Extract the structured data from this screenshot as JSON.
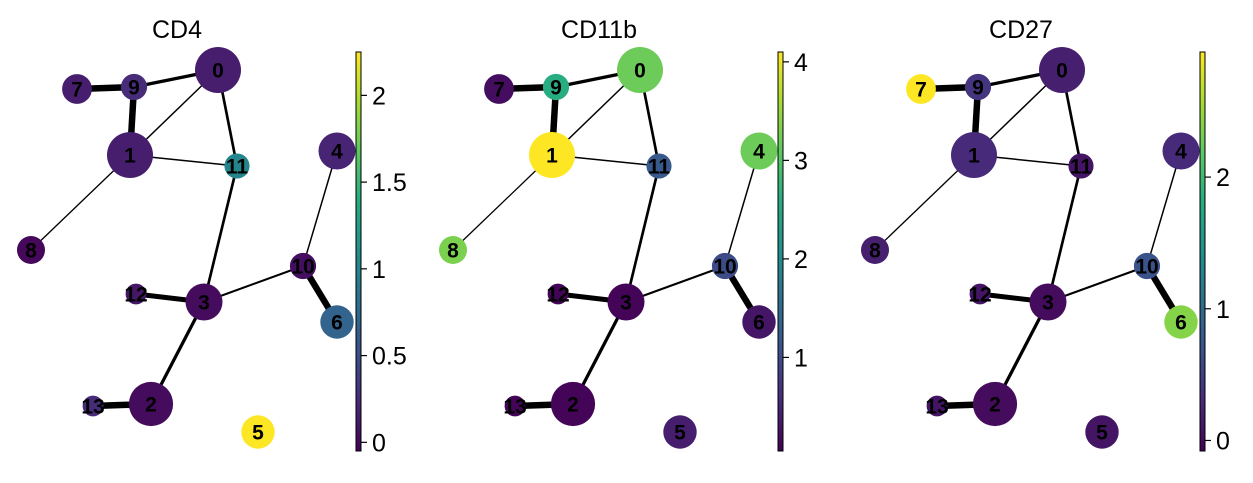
{
  "chart_data": [
    {
      "type": "graph",
      "title": "CD4",
      "colorbar": {
        "min": -0.05,
        "max": 2.25,
        "ticks": [
          0,
          0.5,
          1,
          1.5,
          2
        ],
        "tick_labels": [
          "0",
          "0.5",
          "1",
          "1.5",
          "2"
        ]
      },
      "node_values": {
        "0": 0.15,
        "1": 0.15,
        "2": 0.02,
        "3": 0.02,
        "4": 0.2,
        "5": 2.25,
        "6": 0.7,
        "7": 0.15,
        "8": 0.0,
        "9": 0.25,
        "10": 0.05,
        "11": 1.0,
        "12": 0.1,
        "13": 0.25
      }
    },
    {
      "type": "graph",
      "title": "CD11b",
      "colorbar": {
        "min": 0.05,
        "max": 4.1,
        "ticks": [
          1,
          2,
          3,
          4
        ],
        "tick_labels": [
          "1",
          "2",
          "3",
          "4"
        ]
      },
      "node_values": {
        "0": 3.2,
        "1": 4.1,
        "2": 0.1,
        "3": 0.1,
        "4": 3.2,
        "5": 0.4,
        "6": 0.3,
        "7": 0.2,
        "8": 3.3,
        "9": 2.6,
        "10": 1.0,
        "11": 1.2,
        "12": 0.1,
        "13": 0.1
      }
    },
    {
      "type": "graph",
      "title": "CD27",
      "colorbar": {
        "min": -0.08,
        "max": 2.95,
        "ticks": [
          0,
          1,
          2
        ],
        "tick_labels": [
          "0",
          "1",
          "2"
        ]
      },
      "node_values": {
        "0": 0.2,
        "1": 0.3,
        "2": 0.02,
        "3": 0.02,
        "4": 0.3,
        "5": 0.1,
        "6": 2.4,
        "7": 2.95,
        "8": 0.2,
        "9": 0.4,
        "10": 0.7,
        "11": 0.1,
        "12": 0.1,
        "13": 0.1
      }
    }
  ],
  "graph": {
    "node_labels": [
      "0",
      "1",
      "2",
      "3",
      "4",
      "5",
      "6",
      "7",
      "8",
      "9",
      "10",
      "11",
      "12",
      "13"
    ],
    "node_sizes": {
      "0": 1.0,
      "1": 1.0,
      "2": 0.95,
      "3": 0.75,
      "4": 0.75,
      "5": 0.65,
      "6": 0.65,
      "7": 0.55,
      "8": 0.5,
      "9": 0.45,
      "10": 0.45,
      "11": 0.42,
      "12": 0.3,
      "13": 0.3
    },
    "edges": [
      {
        "source": "7",
        "target": "9",
        "weight": 1.0
      },
      {
        "source": "9",
        "target": "1",
        "weight": 1.0
      },
      {
        "source": "9",
        "target": "0",
        "weight": 0.45
      },
      {
        "source": "0",
        "target": "1",
        "weight": 0.15
      },
      {
        "source": "0",
        "target": "11",
        "weight": 0.35
      },
      {
        "source": "1",
        "target": "11",
        "weight": 0.15
      },
      {
        "source": "1",
        "target": "8",
        "weight": 0.12
      },
      {
        "source": "11",
        "target": "3",
        "weight": 0.35
      },
      {
        "source": "3",
        "target": "12",
        "weight": 0.75
      },
      {
        "source": "3",
        "target": "10",
        "weight": 0.25
      },
      {
        "source": "3",
        "target": "2",
        "weight": 0.45
      },
      {
        "source": "2",
        "target": "13",
        "weight": 1.0
      },
      {
        "source": "10",
        "target": "6",
        "weight": 1.0
      },
      {
        "source": "10",
        "target": "4",
        "weight": 0.15
      }
    ]
  },
  "colormap": "viridis"
}
